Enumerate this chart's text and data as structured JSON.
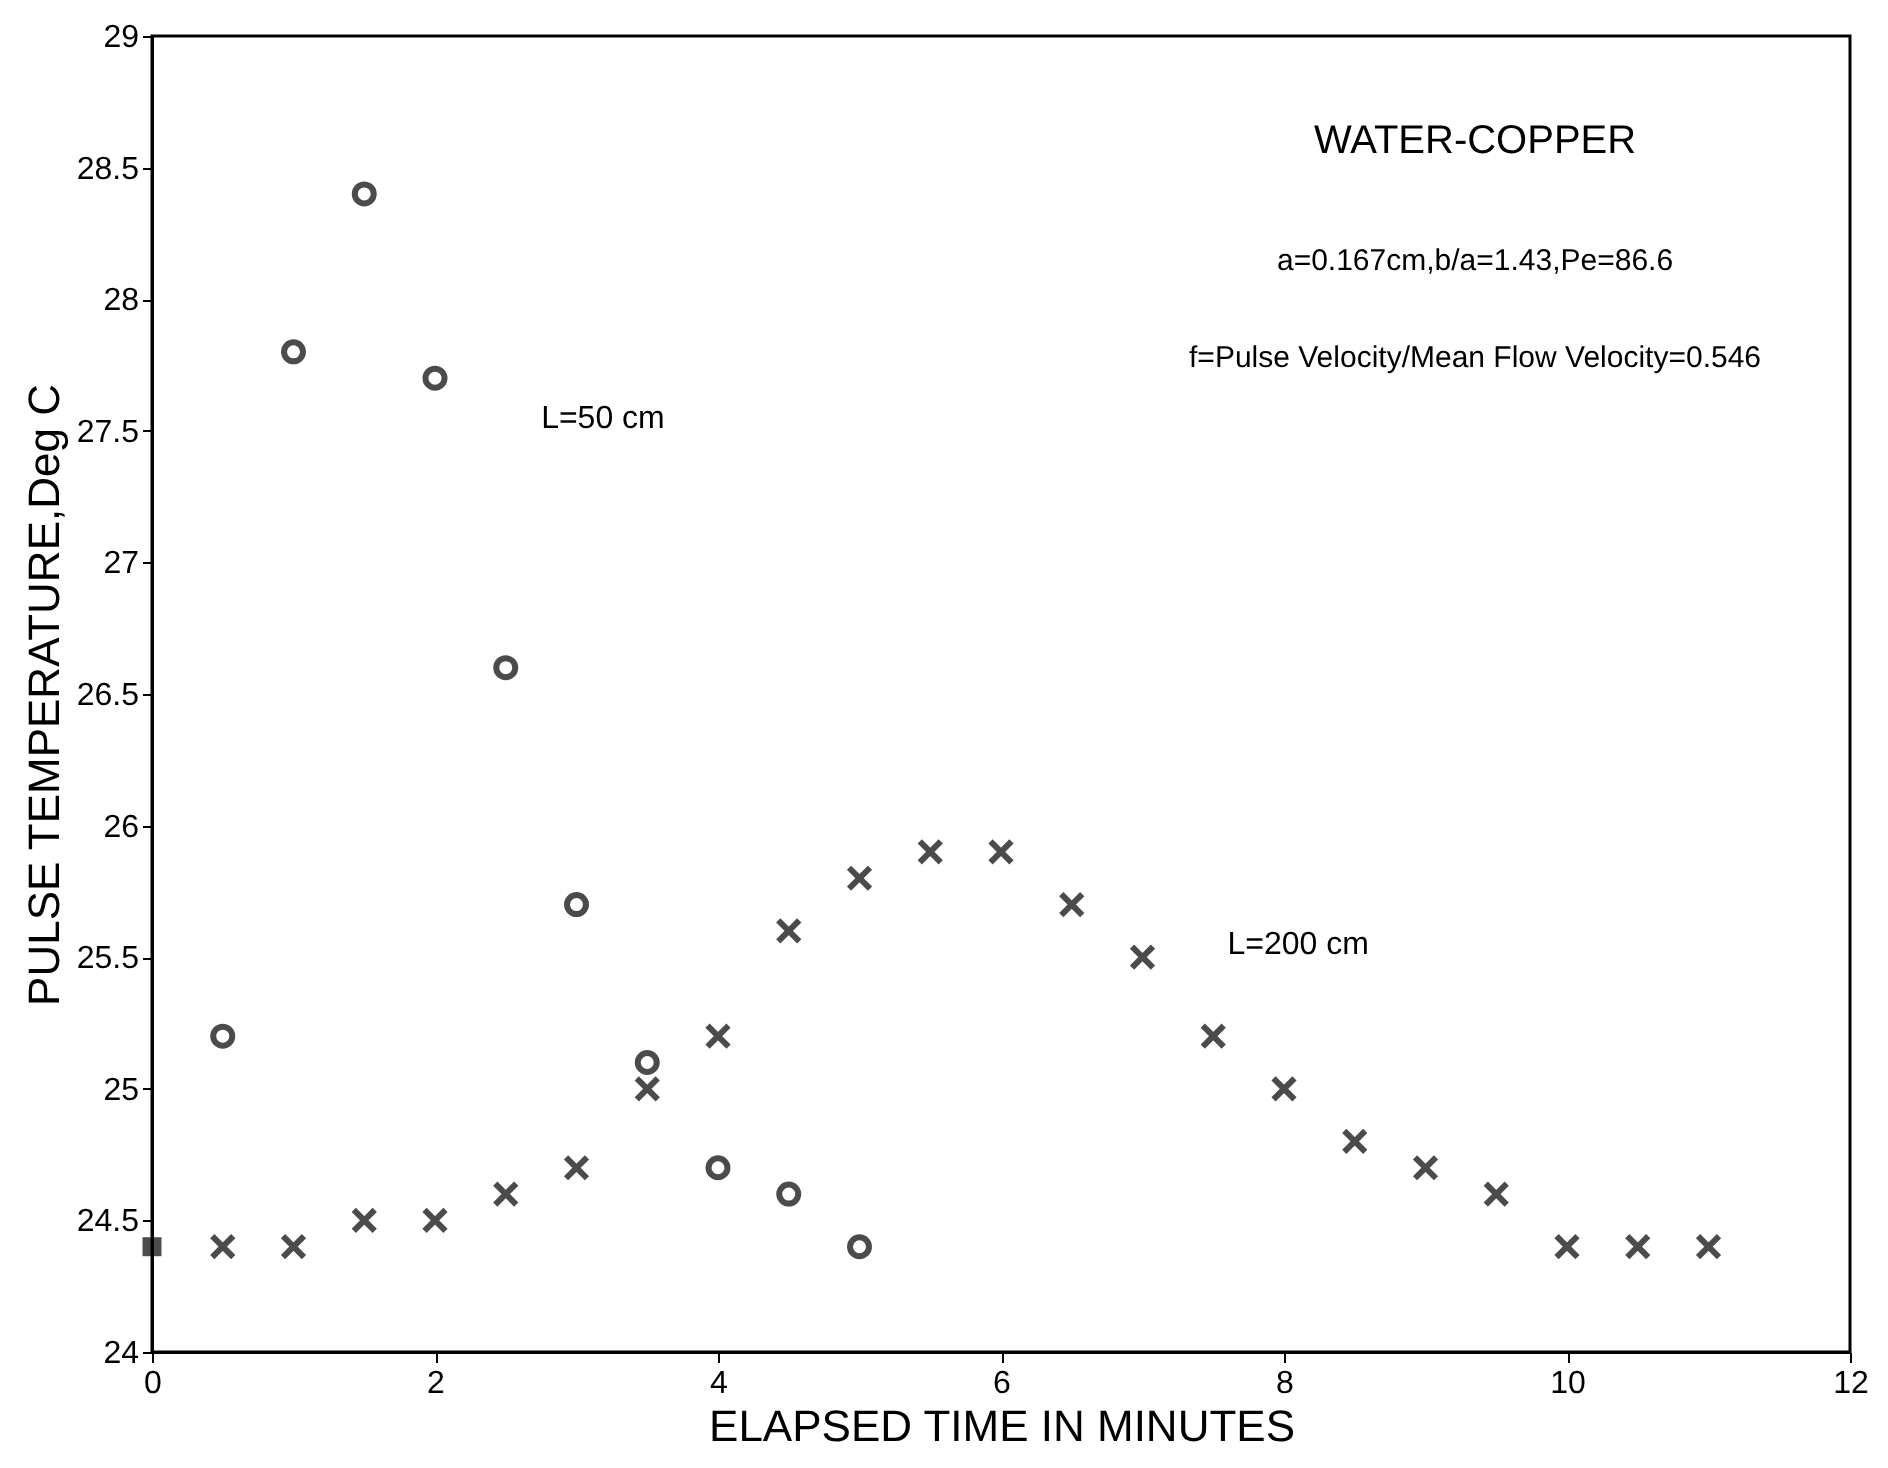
{
  "chart_data": {
    "type": "scatter",
    "xlabel": "ELAPSED TIME IN MINUTES",
    "ylabel": "PULSE TEMPERATURE,Deg C",
    "xlim": [
      0,
      12
    ],
    "xticks": [
      0,
      2,
      4,
      6,
      8,
      10,
      12
    ],
    "ylim": [
      24,
      29
    ],
    "yticks": [
      24,
      24.5,
      25,
      25.5,
      26,
      26.5,
      27,
      27.5,
      28,
      28.5,
      29
    ],
    "grid": false,
    "series": [
      {
        "color": "#000000",
        "marker": "circle",
        "x": [
          0.5,
          1,
          1.5,
          2,
          2.5,
          3,
          3.5,
          4,
          4.5,
          5
        ],
        "values": [
          25.2,
          27.8,
          28.4,
          27.7,
          26.6,
          25.7,
          25.1,
          24.7,
          24.6,
          24.4
        ]
      },
      {
        "color": "#000000",
        "marker": "cross",
        "x": [
          0.5,
          1,
          1.5,
          2,
          2.5,
          3,
          3.5,
          4,
          4.5,
          5,
          5.5,
          6,
          6.5,
          7,
          7.5,
          8,
          8.5,
          9,
          9.5,
          10,
          10.5,
          11
        ],
        "values": [
          24.4,
          24.4,
          24.5,
          24.5,
          24.6,
          24.7,
          25.0,
          25.2,
          25.6,
          25.8,
          25.9,
          25.9,
          25.7,
          25.5,
          25.2,
          25.0,
          24.8,
          24.7,
          24.6,
          24.4,
          24.4,
          24.4
        ]
      },
      {
        "color": "#000000",
        "marker": "square",
        "x": [
          0
        ],
        "values": [
          24.4
        ]
      }
    ],
    "annotations": [
      "WATER-COPPER",
      "a=0.167cm,b/a=1.43,Pe=86.6",
      "f=Pulse Velocity/Mean Flow Velocity=0.546",
      "L=50 cm",
      "L=200 cm"
    ]
  }
}
